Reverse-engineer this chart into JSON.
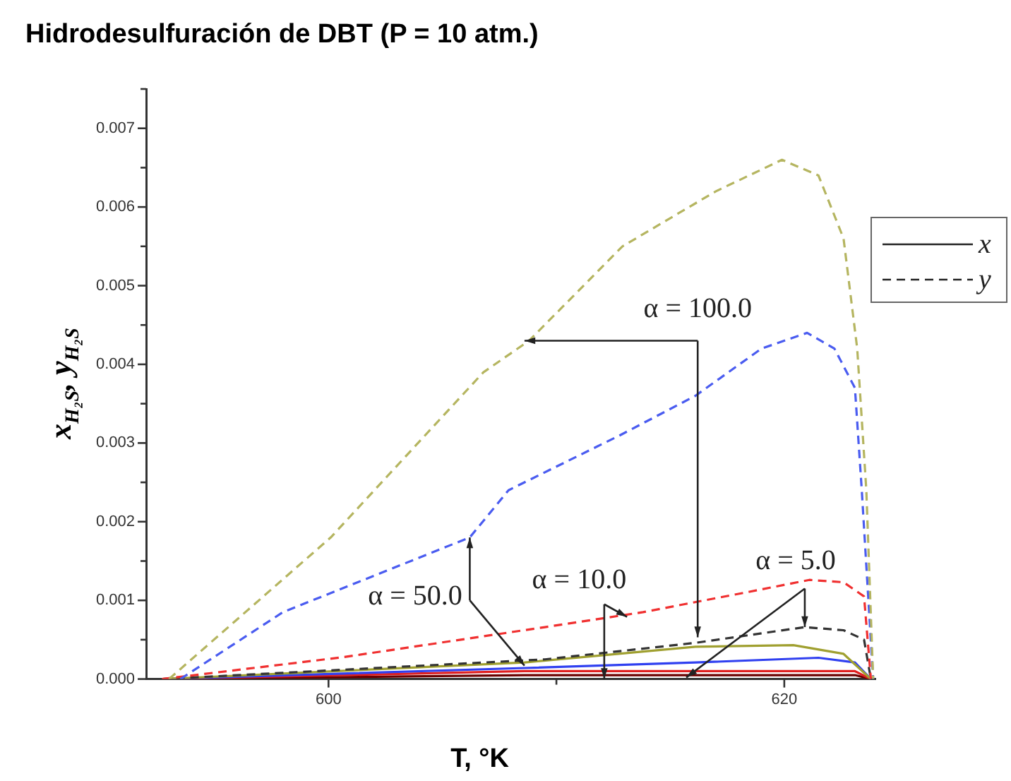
{
  "chart_data": {
    "type": "line",
    "title": "Hidrodesulfuración de DBT (P = 10 atm.)",
    "xlabel": "T, °K",
    "ylabel": "x$_{H₂S}$, y$_{H₂S}$",
    "xlim": [
      592,
      624
    ],
    "xticks": [
      600,
      {
        "value": 610,
        "label": null
      },
      620
    ],
    "ylim": [
      0,
      0.0075
    ],
    "yticks": [
      {
        "value": 0,
        "label": "0.000"
      },
      {
        "value": 0.0005,
        "label": null
      },
      0.001,
      {
        "value": 0.0015,
        "label": null
      },
      0.002,
      {
        "value": 0.0025,
        "label": null
      },
      0.003,
      {
        "value": 0.0035,
        "label": null
      },
      0.004,
      {
        "value": 0.0045,
        "label": null
      },
      0.005,
      {
        "value": 0.0055,
        "label": null
      },
      0.006,
      {
        "value": 0.0065,
        "label": null
      },
      0.007,
      {
        "value": 0.0075,
        "label": null
      }
    ],
    "grid": false,
    "marker": "none",
    "series": [
      {
        "color": "#b5b560",
        "line_style": "dashed",
        "x": [
          593,
          600.1,
          606.8,
          608.8,
          612.9,
          617,
          619.9,
          621.5,
          622.6,
          623.2,
          623.6,
          623.9
        ],
        "values": [
          0,
          0.0018,
          0.0039,
          0.0043,
          0.0055,
          0.0062,
          0.0066,
          0.0064,
          0.0056,
          0.0042,
          0.0024,
          0
        ]
      },
      {
        "color": "#4a5cf0",
        "line_style": "dashed",
        "x": [
          593.5,
          598,
          606.2,
          607.9,
          612.8,
          616.1,
          619,
          621,
          622.2,
          623.1,
          623.4,
          623.9
        ],
        "values": [
          0,
          0.00085,
          0.0018,
          0.0024,
          0.0031,
          0.0036,
          0.0042,
          0.0044,
          0.0042,
          0.0037,
          0.0024,
          0
        ]
      },
      {
        "color": "#f03030",
        "line_style": "dashed",
        "x": [
          592.7,
          600.7,
          609.5,
          613.8,
          618.3,
          621.1,
          622.6,
          623.5,
          623.8
        ],
        "values": [
          0,
          0.00028,
          0.00066,
          0.00085,
          0.0011,
          0.00126,
          0.00123,
          0.00105,
          0
        ]
      },
      {
        "color": "#333333",
        "line_style": "dashed",
        "x": [
          592.7,
          609.5,
          616.1,
          620.9,
          622.6,
          623.5,
          623.8
        ],
        "values": [
          0,
          0.00025,
          0.00046,
          0.00066,
          0.00062,
          0.0005,
          0
        ]
      },
      {
        "color": "#a0a030",
        "line_style": "solid",
        "x": [
          592.7,
          608.6,
          616.1,
          620.4,
          622.6,
          623.8
        ],
        "values": [
          0,
          0.00021,
          0.00041,
          0.00043,
          0.00032,
          0
        ]
      },
      {
        "color": "#3040f0",
        "line_style": "solid",
        "x": [
          592.7,
          608.6,
          616.1,
          621.5,
          623.1,
          623.8
        ],
        "values": [
          0,
          0.00014,
          0.00021,
          0.00027,
          0.00021,
          0
        ]
      },
      {
        "color": "#e02020",
        "line_style": "solid",
        "x": [
          592.7,
          608.6,
          616.1,
          621.5,
          623.1,
          623.8
        ],
        "values": [
          0,
          0.0001,
          0.0001,
          0.0001,
          0.0001,
          0
        ]
      },
      {
        "color": "#6b0000",
        "line_style": "solid",
        "x": [
          592.7,
          608.6,
          616.1,
          621.5,
          623.1,
          623.8
        ],
        "values": [
          0,
          5e-05,
          5e-05,
          5e-05,
          5e-05,
          0
        ]
      }
    ],
    "annotations": [
      {
        "text": "α = 100.0",
        "x": 608.6,
        "y": 0.0043
      },
      {
        "text": "α = 50.0",
        "x": 606.2,
        "y": 0.0018
      },
      {
        "text": "α = 10.0",
        "x": 613.1,
        "y": 0.00079
      },
      {
        "text": "α = 5.0",
        "x": 620.9,
        "y": 0.00066
      },
      "x",
      "y"
    ]
  }
}
